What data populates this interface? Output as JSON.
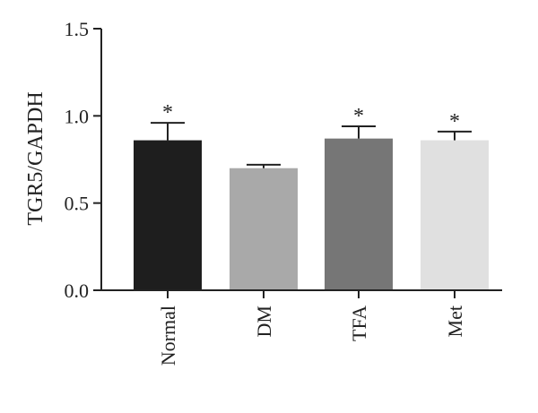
{
  "chart_data": {
    "type": "bar",
    "categories": [
      "Normal",
      "DM",
      "TFA",
      "Met"
    ],
    "values": [
      0.86,
      0.7,
      0.87,
      0.86
    ],
    "error": [
      0.1,
      0.02,
      0.07,
      0.05
    ],
    "annotations": [
      "*",
      "",
      "*",
      "*"
    ],
    "colors": [
      "#1e1e1e",
      "#a9a9a9",
      "#767676",
      "#e0e0e0"
    ],
    "ylabel": "TGR5/GAPDH",
    "xlabel": "",
    "title": "",
    "ylim": [
      0,
      1.5
    ],
    "yticks": [
      "0.0",
      "0.5",
      "1.0",
      "1.5"
    ],
    "grid": false,
    "legend": "none"
  }
}
